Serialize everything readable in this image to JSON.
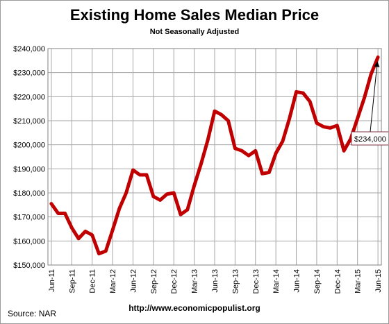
{
  "chart_data": {
    "type": "line",
    "title": "Existing Home Sales Median Price",
    "subtitle": "Not Seasonally Adjusted",
    "xlabel": "",
    "ylabel": "",
    "ylim": [
      150000,
      240000
    ],
    "y_ticks": [
      150000,
      160000,
      170000,
      180000,
      190000,
      200000,
      210000,
      220000,
      230000,
      240000
    ],
    "y_tick_labels": [
      "$150,000",
      "$160,000",
      "$170,000",
      "$180,000",
      "$190,000",
      "$200,000",
      "$210,000",
      "$220,000",
      "$230,000",
      "$240,000"
    ],
    "x_tick_labels": [
      "Jun-11",
      "Sep-11",
      "Dec-11",
      "Mar-12",
      "Jun-12",
      "Sep-12",
      "Dec-12",
      "Mar-13",
      "Jun-13",
      "Sep-13",
      "Dec-13",
      "Mar-14",
      "Jun-14",
      "Sep-14",
      "Dec-14",
      "Mar-15",
      "Jun-15"
    ],
    "x_tick_index": [
      0,
      3,
      6,
      9,
      12,
      15,
      18,
      21,
      24,
      27,
      30,
      33,
      36,
      39,
      42,
      45,
      48
    ],
    "grid": true,
    "legend": "none",
    "line_color": "#c00000",
    "series": [
      {
        "values": [
          175500,
          171500,
          171500,
          165500,
          161000,
          164000,
          162500,
          154700,
          155800,
          164500,
          173500,
          180000,
          189500,
          187500,
          187500,
          178500,
          177000,
          179500,
          180000,
          171000,
          173000,
          183000,
          192000,
          202000,
          214000,
          212500,
          210000,
          198500,
          197500,
          195500,
          197500,
          188000,
          188500,
          196500,
          201500,
          211000,
          222000,
          221500,
          218000,
          209000,
          207500,
          207000,
          208000,
          197500,
          202500,
          211000,
          219500,
          229500,
          236400
        ]
      }
    ],
    "annotation": {
      "text": "$234,000"
    }
  },
  "footer": {
    "source": "Source:  NAR",
    "url": "http://www.economicpopulist.org"
  }
}
